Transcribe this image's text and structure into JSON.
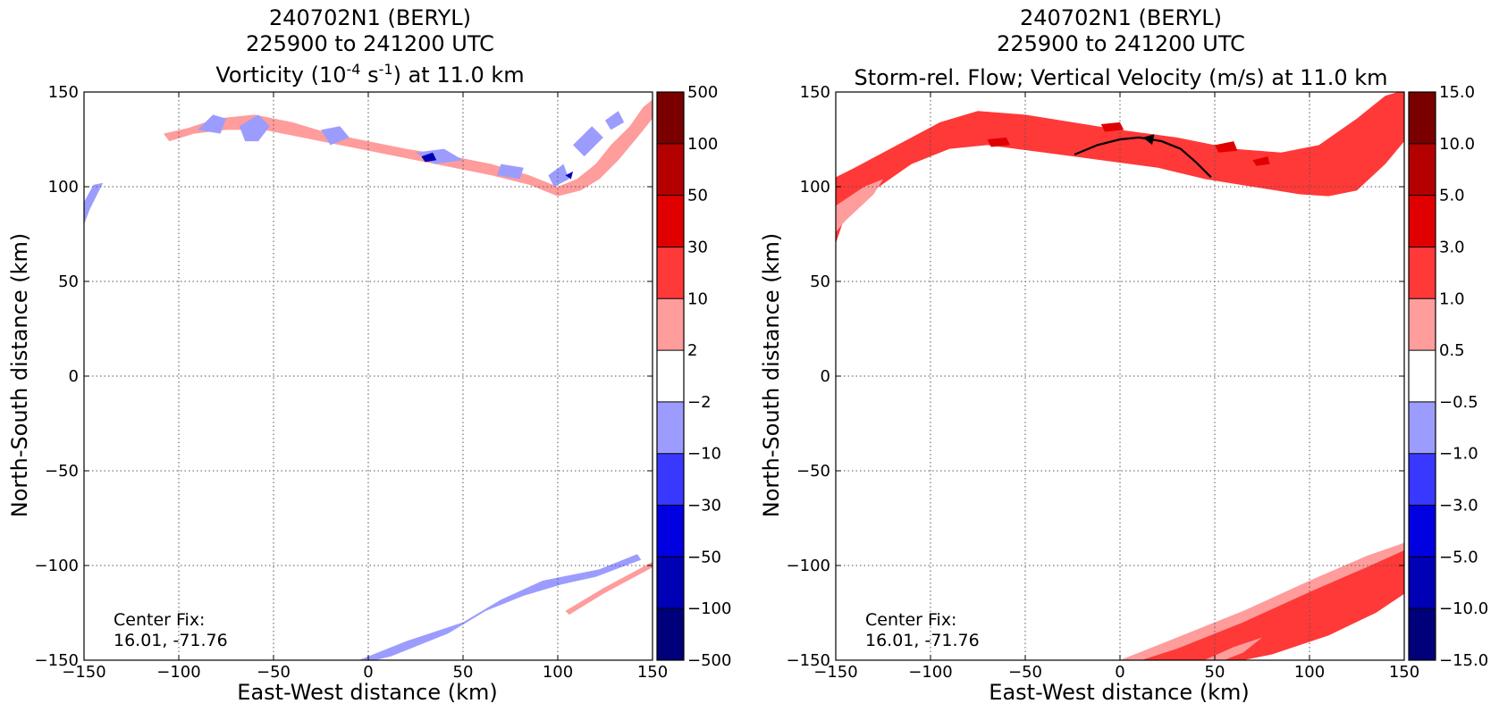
{
  "chart_data": [
    {
      "type": "heatmap",
      "title_lines": [
        "240702N1 (BERYL)",
        "225900 to 241200 UTC"
      ],
      "title_line3": {
        "pre": "Vorticity (10",
        "sup1": "-4",
        "mid": " s",
        "sup2": "-1",
        "post": ") at 11.0 km"
      },
      "xlabel": "East-West distance (km)",
      "ylabel": "North-South distance (km)",
      "xlim": [
        -150,
        150
      ],
      "ylim": [
        -150,
        150
      ],
      "xticks": [
        -150,
        -100,
        -50,
        0,
        50,
        100,
        150
      ],
      "yticks": [
        -150,
        -100,
        -50,
        0,
        50,
        100,
        150
      ],
      "xtick_labels": [
        "−150",
        "−100",
        "−50",
        "0",
        "50",
        "100",
        "150"
      ],
      "ytick_labels": [
        "−150",
        "−100",
        "−50",
        "0",
        "50",
        "100",
        "150"
      ],
      "grid": true,
      "annotation": {
        "line1": "Center Fix:",
        "line2": "16.01, -71.76"
      },
      "colorbar": {
        "labels": [
          "500",
          "100",
          "50",
          "30",
          "10",
          "2",
          "−2",
          "−10",
          "−30",
          "−50",
          "−100",
          "−500"
        ],
        "colors": [
          "#7a0000",
          "#b50000",
          "#e00000",
          "#ff3838",
          "#ff9c9c",
          "#ffffff",
          "#9c9cff",
          "#3838ff",
          "#0000e0",
          "#0000b5",
          "#00007a"
        ]
      },
      "regions": [
        {
          "color": "#ff9c9c",
          "points": [
            [
              -108,
              128
            ],
            [
              -95,
              131
            ],
            [
              -80,
              136
            ],
            [
              -60,
              138
            ],
            [
              -40,
              134
            ],
            [
              -20,
              128
            ],
            [
              0,
              124
            ],
            [
              20,
              120
            ],
            [
              45,
              116
            ],
            [
              65,
              112
            ],
            [
              85,
              106
            ],
            [
              100,
              100
            ],
            [
              110,
              104
            ],
            [
              120,
              112
            ],
            [
              128,
              122
            ],
            [
              138,
              132
            ],
            [
              145,
              142
            ],
            [
              150,
              146
            ],
            [
              150,
              136
            ],
            [
              142,
              126
            ],
            [
              132,
              114
            ],
            [
              122,
              104
            ],
            [
              112,
              98
            ],
            [
              100,
              95
            ],
            [
              85,
              101
            ],
            [
              65,
              106
            ],
            [
              45,
              110
            ],
            [
              25,
              114
            ],
            [
              5,
              118
            ],
            [
              -15,
              122
            ],
            [
              -35,
              126
            ],
            [
              -55,
              130
            ],
            [
              -75,
              130
            ],
            [
              -92,
              128
            ],
            [
              -105,
              124
            ]
          ]
        },
        {
          "color": "#9c9cff",
          "points": [
            [
              -90,
              130
            ],
            [
              -82,
              138
            ],
            [
              -75,
              136
            ],
            [
              -78,
              128
            ]
          ]
        },
        {
          "color": "#9c9cff",
          "points": [
            [
              -68,
              132
            ],
            [
              -58,
              138
            ],
            [
              -52,
              132
            ],
            [
              -58,
              124
            ],
            [
              -65,
              124
            ]
          ]
        },
        {
          "color": "#9c9cff",
          "points": [
            [
              -25,
              130
            ],
            [
              -15,
              132
            ],
            [
              -10,
              126
            ],
            [
              -20,
              122
            ]
          ]
        },
        {
          "color": "#9c9cff",
          "points": [
            [
              25,
              118
            ],
            [
              40,
              120
            ],
            [
              50,
              114
            ],
            [
              35,
              112
            ]
          ]
        },
        {
          "color": "#9c9cff",
          "points": [
            [
              70,
              112
            ],
            [
              82,
              110
            ],
            [
              80,
              104
            ],
            [
              68,
              106
            ]
          ]
        },
        {
          "color": "#9c9cff",
          "points": [
            [
              95,
              106
            ],
            [
              103,
              112
            ],
            [
              106,
              104
            ],
            [
              98,
              100
            ]
          ]
        },
        {
          "color": "#9c9cff",
          "points": [
            [
              108,
              122
            ],
            [
              118,
              132
            ],
            [
              124,
              126
            ],
            [
              114,
              116
            ]
          ]
        },
        {
          "color": "#9c9cff",
          "points": [
            [
              125,
              135
            ],
            [
              132,
              140
            ],
            [
              135,
              134
            ],
            [
              128,
              130
            ]
          ]
        },
        {
          "color": "#9c9cff",
          "points": [
            [
              -150,
              92
            ],
            [
              -145,
              101
            ],
            [
              -140,
              102
            ],
            [
              -147,
              88
            ],
            [
              -150,
              80
            ]
          ]
        },
        {
          "color": "#9c9cff",
          "points": [
            [
              -10,
              -152
            ],
            [
              20,
              -140
            ],
            [
              50,
              -130
            ],
            [
              70,
              -118
            ],
            [
              92,
              -108
            ],
            [
              112,
              -104
            ],
            [
              122,
              -102
            ],
            [
              142,
              -94
            ],
            [
              144,
              -97
            ],
            [
              120,
              -106
            ],
            [
              102,
              -110
            ],
            [
              82,
              -116
            ],
            [
              62,
              -124
            ],
            [
              42,
              -136
            ],
            [
              12,
              -148
            ],
            [
              -5,
              -152
            ]
          ]
        },
        {
          "color": "#ff9c9c",
          "points": [
            [
              104,
              -124
            ],
            [
              124,
              -112
            ],
            [
              150,
              -98
            ],
            [
              150,
              -101
            ],
            [
              124,
              -115
            ],
            [
              106,
              -126
            ]
          ]
        },
        {
          "color": "#0000b5",
          "points": [
            [
              28,
              116
            ],
            [
              34,
              118
            ],
            [
              36,
              114
            ],
            [
              30,
              113
            ]
          ]
        },
        {
          "color": "#0000b5",
          "points": [
            [
              104,
              106
            ],
            [
              108,
              108
            ],
            [
              107,
              104
            ]
          ]
        }
      ]
    },
    {
      "type": "heatmap",
      "title_lines": [
        "240702N1 (BERYL)",
        "225900 to 241200 UTC",
        "Storm-rel. Flow; Vertical Velocity (m/s) at 11.0 km"
      ],
      "xlabel": "East-West distance (km)",
      "ylabel": "North-South distance (km)",
      "xlim": [
        -150,
        150
      ],
      "ylim": [
        -150,
        150
      ],
      "xticks": [
        -150,
        -100,
        -50,
        0,
        50,
        100,
        150
      ],
      "yticks": [
        -150,
        -100,
        -50,
        0,
        50,
        100,
        150
      ],
      "xtick_labels": [
        "−150",
        "−100",
        "−50",
        "0",
        "50",
        "100",
        "150"
      ],
      "ytick_labels": [
        "−150",
        "−100",
        "−50",
        "0",
        "50",
        "100",
        "150"
      ],
      "grid": true,
      "annotation": {
        "line1": "Center Fix:",
        "line2": "16.01, -71.76"
      },
      "colorbar": {
        "labels": [
          "15.0",
          "10.0",
          "5.0",
          "3.0",
          "1.0",
          "0.5",
          "−0.5",
          "−1.0",
          "−3.0",
          "−5.0",
          "−10.0",
          "−15.0"
        ],
        "colors": [
          "#7a0000",
          "#b50000",
          "#e00000",
          "#ff3838",
          "#ff9c9c",
          "#ffffff",
          "#9c9cff",
          "#3838ff",
          "#0000e0",
          "#0000b5",
          "#00007a"
        ]
      },
      "regions": [
        {
          "color": "#ff3838",
          "points": [
            [
              -150,
              105
            ],
            [
              -140,
              110
            ],
            [
              -125,
              118
            ],
            [
              -110,
              126
            ],
            [
              -95,
              134
            ],
            [
              -75,
              140
            ],
            [
              -50,
              138
            ],
            [
              -25,
              134
            ],
            [
              0,
              130
            ],
            [
              30,
              126
            ],
            [
              60,
              120
            ],
            [
              85,
              118
            ],
            [
              105,
              122
            ],
            [
              125,
              136
            ],
            [
              140,
              148
            ],
            [
              150,
              151
            ],
            [
              150,
              124
            ],
            [
              140,
              112
            ],
            [
              125,
              98
            ],
            [
              110,
              95
            ],
            [
              95,
              96
            ],
            [
              70,
              100
            ],
            [
              45,
              104
            ],
            [
              20,
              110
            ],
            [
              -10,
              114
            ],
            [
              -40,
              118
            ],
            [
              -70,
              122
            ],
            [
              -90,
              120
            ],
            [
              -110,
              112
            ],
            [
              -130,
              98
            ],
            [
              -145,
              85
            ],
            [
              -150,
              70
            ]
          ]
        },
        {
          "color": "#ff9c9c",
          "points": [
            [
              -150,
              90
            ],
            [
              -135,
              100
            ],
            [
              -125,
              104
            ],
            [
              -130,
              96
            ],
            [
              -145,
              82
            ],
            [
              -150,
              76
            ]
          ]
        },
        {
          "color": "#e00000",
          "points": [
            [
              -70,
              125
            ],
            [
              -60,
              126
            ],
            [
              -58,
              122
            ],
            [
              -68,
              121
            ]
          ]
        },
        {
          "color": "#e00000",
          "points": [
            [
              -10,
              133
            ],
            [
              0,
              134
            ],
            [
              2,
              130
            ],
            [
              -8,
              129
            ]
          ]
        },
        {
          "color": "#e00000",
          "points": [
            [
              50,
              122
            ],
            [
              60,
              124
            ],
            [
              62,
              119
            ],
            [
              52,
              118
            ]
          ]
        },
        {
          "color": "#e00000",
          "points": [
            [
              70,
              114
            ],
            [
              78,
              116
            ],
            [
              79,
              112
            ],
            [
              72,
              111
            ]
          ]
        },
        {
          "color": "#ff3838",
          "points": [
            [
              -5,
              -152
            ],
            [
              30,
              -140
            ],
            [
              60,
              -128
            ],
            [
              90,
              -115
            ],
            [
              120,
              -102
            ],
            [
              140,
              -92
            ],
            [
              150,
              -88
            ],
            [
              150,
              -115
            ],
            [
              135,
              -125
            ],
            [
              110,
              -137
            ],
            [
              80,
              -147
            ],
            [
              55,
              -152
            ]
          ]
        },
        {
          "color": "#ff9c9c",
          "points": [
            [
              -5,
              -152
            ],
            [
              30,
              -138
            ],
            [
              65,
              -124
            ],
            [
              100,
              -108
            ],
            [
              130,
              -95
            ],
            [
              150,
              -88
            ],
            [
              150,
              -92
            ],
            [
              130,
              -101
            ],
            [
              100,
              -114
            ],
            [
              65,
              -130
            ],
            [
              30,
              -144
            ],
            [
              5,
              -152
            ]
          ]
        },
        {
          "color": "#ff9c9c",
          "points": [
            [
              40,
              -152
            ],
            [
              60,
              -143
            ],
            [
              75,
              -138
            ],
            [
              65,
              -146
            ],
            [
              50,
              -152
            ]
          ]
        }
      ],
      "streamline": [
        [
          -24,
          117
        ],
        [
          -12,
          122
        ],
        [
          0,
          125
        ],
        [
          10,
          126
        ],
        [
          22,
          124
        ],
        [
          32,
          120
        ],
        [
          40,
          113
        ],
        [
          48,
          105
        ]
      ],
      "streamline_arrow": {
        "tip": [
          12,
          126
        ],
        "from": [
          22,
          124
        ]
      }
    }
  ]
}
